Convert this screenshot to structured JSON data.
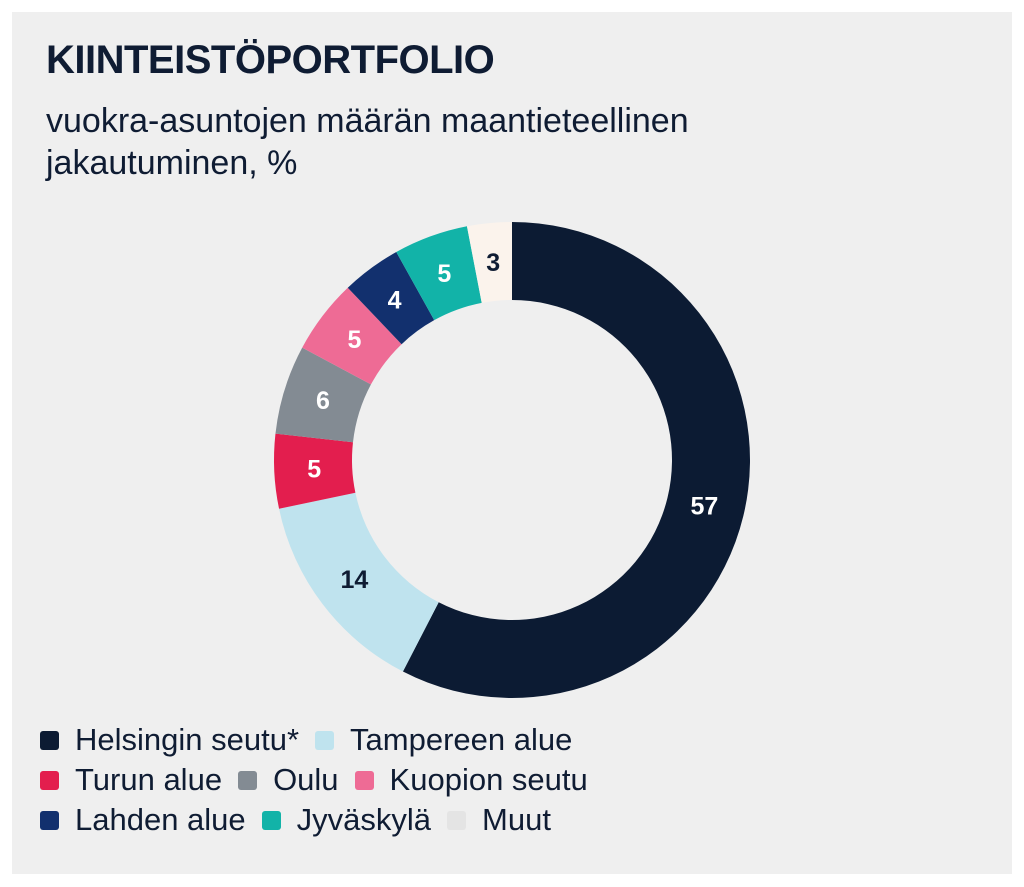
{
  "title": "KIINTEISTÖPORTFOLIO",
  "subtitle": "vuokra-asuntojen määrän maantieteellinen jakautuminen, %",
  "chart_data": {
    "type": "pie",
    "title": "KIINTEISTÖPORTFOLIO",
    "subtitle": "vuokra-asuntojen määrän maantieteellinen jakautuminen, %",
    "categories": [
      "Helsingin seutu*",
      "Tampereen alue",
      "Turun alue",
      "Oulu",
      "Kuopion seutu",
      "Lahden alue",
      "Jyväskylä",
      "Muut"
    ],
    "values": [
      57,
      14,
      5,
      6,
      5,
      4,
      5,
      3
    ],
    "colors": [
      "#0c1b33",
      "#bfe3ee",
      "#e31e4e",
      "#838b93",
      "#ee6b95",
      "#12306e",
      "#12b3a8",
      "#fbf3ec"
    ],
    "label_colors": [
      "#ffffff",
      "#0f1c33",
      "#ffffff",
      "#ffffff",
      "#ffffff",
      "#ffffff",
      "#ffffff",
      "#0f1c33"
    ],
    "donut": true,
    "legend_position": "bottom"
  },
  "legend": {
    "rows": [
      [
        0,
        1
      ],
      [
        2,
        3,
        4
      ],
      [
        5,
        6,
        7
      ]
    ],
    "swatch_colors": [
      "#0c1b33",
      "#bfe3ee",
      "#e31e4e",
      "#838b93",
      "#ee6b95",
      "#12306e",
      "#12b3a8",
      "#e4e4e4"
    ]
  }
}
